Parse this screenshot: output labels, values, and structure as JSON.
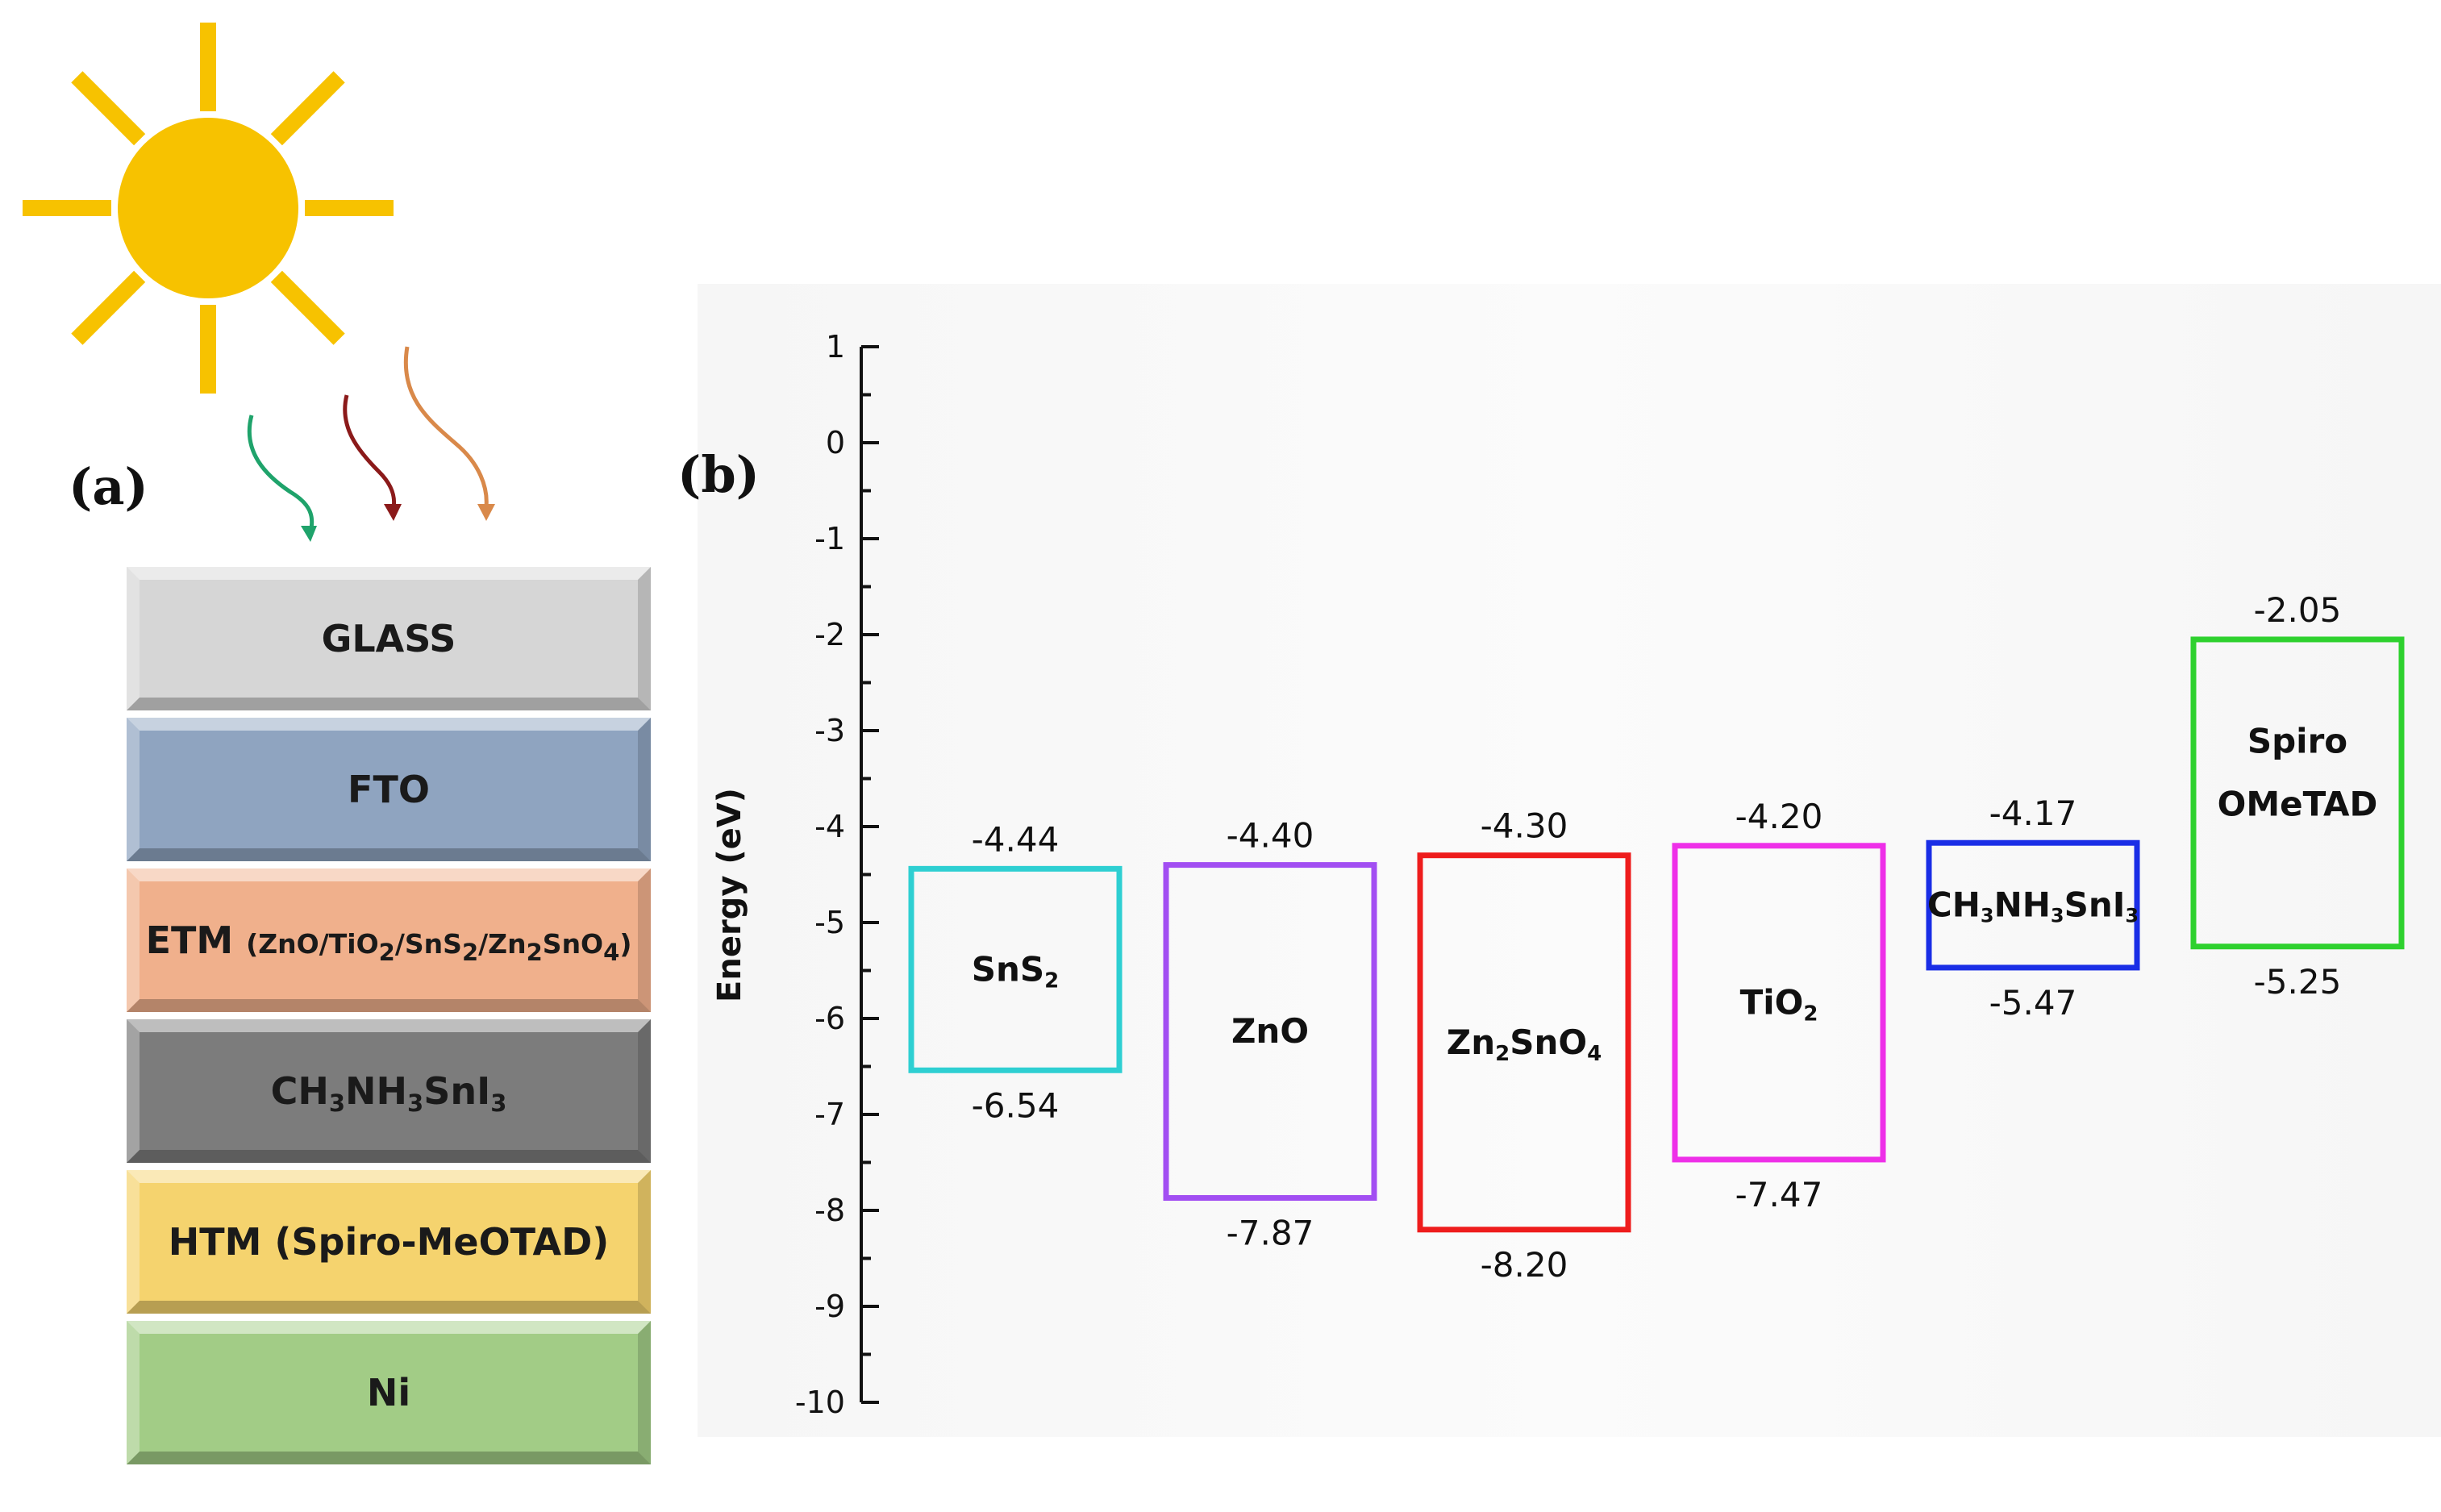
{
  "panel_a": {
    "label": "(a)",
    "layers": [
      {
        "parts": [
          {
            "t": "GLASS"
          }
        ],
        "color": "#d6d6d6"
      },
      {
        "parts": [
          {
            "t": "FTO"
          }
        ],
        "color": "#8fa4c0"
      },
      {
        "parts": [
          {
            "t": "ETM "
          },
          {
            "t": "(ZnO/TiO",
            "s": "small"
          },
          {
            "t": "2",
            "s": "sub"
          },
          {
            "t": "/SnS",
            "s": "small"
          },
          {
            "t": "2",
            "s": "sub"
          },
          {
            "t": "/Zn",
            "s": "small"
          },
          {
            "t": "2",
            "s": "sub"
          },
          {
            "t": "SnO",
            "s": "small"
          },
          {
            "t": "4",
            "s": "sub"
          },
          {
            "t": ")",
            "s": "small"
          }
        ],
        "color": "#f0b08c"
      },
      {
        "parts": [
          {
            "t": "CH"
          },
          {
            "t": "3",
            "s": "sub"
          },
          {
            "t": "NH"
          },
          {
            "t": "3",
            "s": "sub"
          },
          {
            "t": "SnI"
          },
          {
            "t": "3",
            "s": "sub"
          }
        ],
        "color": "#7c7c7c"
      },
      {
        "parts": [
          {
            "t": "HTM (Spiro-MeOTAD)"
          }
        ],
        "color": "#f5d36e"
      },
      {
        "parts": [
          {
            "t": "Ni"
          }
        ],
        "color": "#a2cc86"
      }
    ],
    "sun_color": "#f7c200",
    "ray_colors": [
      "#1fa36b",
      "#8b1a1a",
      "#d9894a"
    ]
  },
  "panel_b": {
    "label": "(b)"
  },
  "chart_data": {
    "type": "energy-level-diagram",
    "ylabel": "Energy (eV)",
    "ylim": [
      -10,
      1
    ],
    "yticks": [
      "1",
      "0",
      "-1",
      "-2",
      "-3",
      "-4",
      "-5",
      "-6",
      "-7",
      "-8",
      "-9",
      "-10"
    ],
    "materials": [
      {
        "parts": [
          {
            "t": "SnS"
          },
          {
            "t": "2",
            "s": "sub"
          }
        ],
        "top": -4.44,
        "bottom": -6.54,
        "top_label": "-4.44",
        "bottom_label": "-6.54",
        "color": "#2ecfd2"
      },
      {
        "parts": [
          {
            "t": "ZnO"
          }
        ],
        "top": -4.4,
        "bottom": -7.87,
        "top_label": "-4.40",
        "bottom_label": "-7.87",
        "color": "#a24ef2"
      },
      {
        "parts": [
          {
            "t": "Zn"
          },
          {
            "t": "2",
            "s": "sub"
          },
          {
            "t": "SnO"
          },
          {
            "t": "4",
            "s": "sub"
          }
        ],
        "top": -4.3,
        "bottom": -8.2,
        "top_label": "-4.30",
        "bottom_label": "-8.20",
        "color": "#ee1c1c"
      },
      {
        "parts": [
          {
            "t": "TiO"
          },
          {
            "t": "2",
            "s": "sub"
          }
        ],
        "top": -4.2,
        "bottom": -7.47,
        "top_label": "-4.20",
        "bottom_label": "-7.47",
        "color": "#ee2fe8"
      },
      {
        "parts": [
          {
            "t": "CH"
          },
          {
            "t": "3",
            "s": "sub"
          },
          {
            "t": "NH"
          },
          {
            "t": "3",
            "s": "sub"
          },
          {
            "t": "SnI"
          },
          {
            "t": "3",
            "s": "sub"
          }
        ],
        "top": -4.17,
        "bottom": -5.47,
        "top_label": "-4.17",
        "bottom_label": "-5.47",
        "color": "#1a2ee6"
      },
      {
        "lines": [
          "Spiro",
          "OMeTAD"
        ],
        "top": -2.05,
        "bottom": -5.25,
        "top_label": "-2.05",
        "bottom_label": "-5.25",
        "color": "#2ed12e"
      }
    ]
  }
}
